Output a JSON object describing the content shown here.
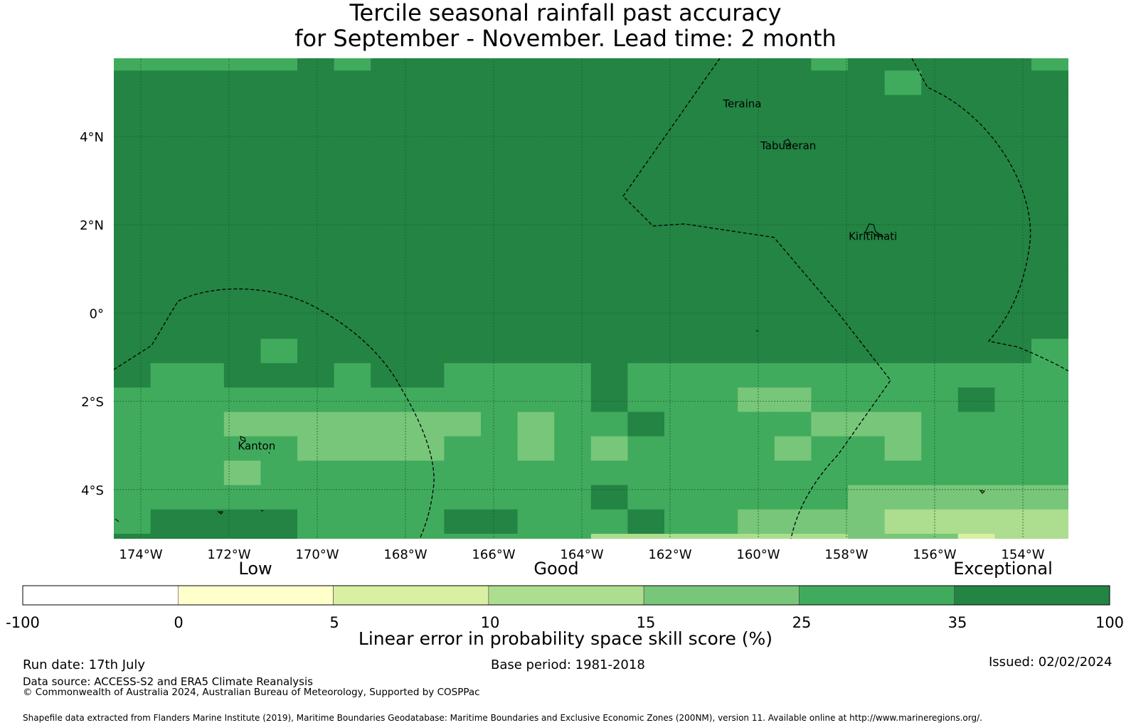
{
  "title": {
    "line1": "Tercile seasonal rainfall past accuracy",
    "line2": "for September - November. Lead time: 2 month"
  },
  "map": {
    "colors": {
      "c1": "#ffffcc",
      "c2": "#d9f0a3",
      "c3": "#addd8e",
      "c4": "#78c679",
      "c5": "#41ab5d",
      "c6": "#238443"
    },
    "lon_ticks": [
      "174°W",
      "172°W",
      "170°W",
      "168°W",
      "166°W",
      "164°W",
      "162°W",
      "160°W",
      "158°W",
      "156°W",
      "154°W"
    ],
    "lat_ticks": [
      "4°N",
      "2°N",
      "0°",
      "2°S",
      "4°S"
    ],
    "places": [
      {
        "name": "Teraina",
        "lon": -160.8,
        "lat": 4.65
      },
      {
        "name": "Tabuaeran",
        "lon": -159.95,
        "lat": 3.7
      },
      {
        "name": "Kiritimati",
        "lon": -157.95,
        "lat": 1.65
      },
      {
        "name": "Kanton",
        "lon": -171.8,
        "lat": -3.1
      }
    ]
  },
  "legend": {
    "category_labels": [
      "Low",
      "Good",
      "Exceptional"
    ],
    "tick_labels": [
      "-100",
      "0",
      "5",
      "10",
      "15",
      "25",
      "35",
      "100"
    ],
    "bin_colors": [
      "#ffffff",
      "#ffffcc",
      "#d9f0a3",
      "#addd8e",
      "#78c679",
      "#41ab5d",
      "#238443"
    ],
    "title": "Linear error in probability space skill score (%)"
  },
  "footer": {
    "run_date": "Run date: 17th July",
    "base_period": "Base period: 1981-2018",
    "issued": "Issued: 02/02/2024",
    "data_source": "Data source: ACCESS-S2 and ERA5 Climate Reanalysis",
    "copyright": "© Commonwealth of Australia 2024, Australian Bureau of Meteorology, Supported by COSPPac",
    "shapefile": "Shapefile data extracted from Flanders Marine Institute (2019), Maritime Boundaries Geodatabase: Maritime Boundaries and Exclusive Economic Zones (200NM), version 11. Available online at http://www.marineregions.org/."
  }
}
